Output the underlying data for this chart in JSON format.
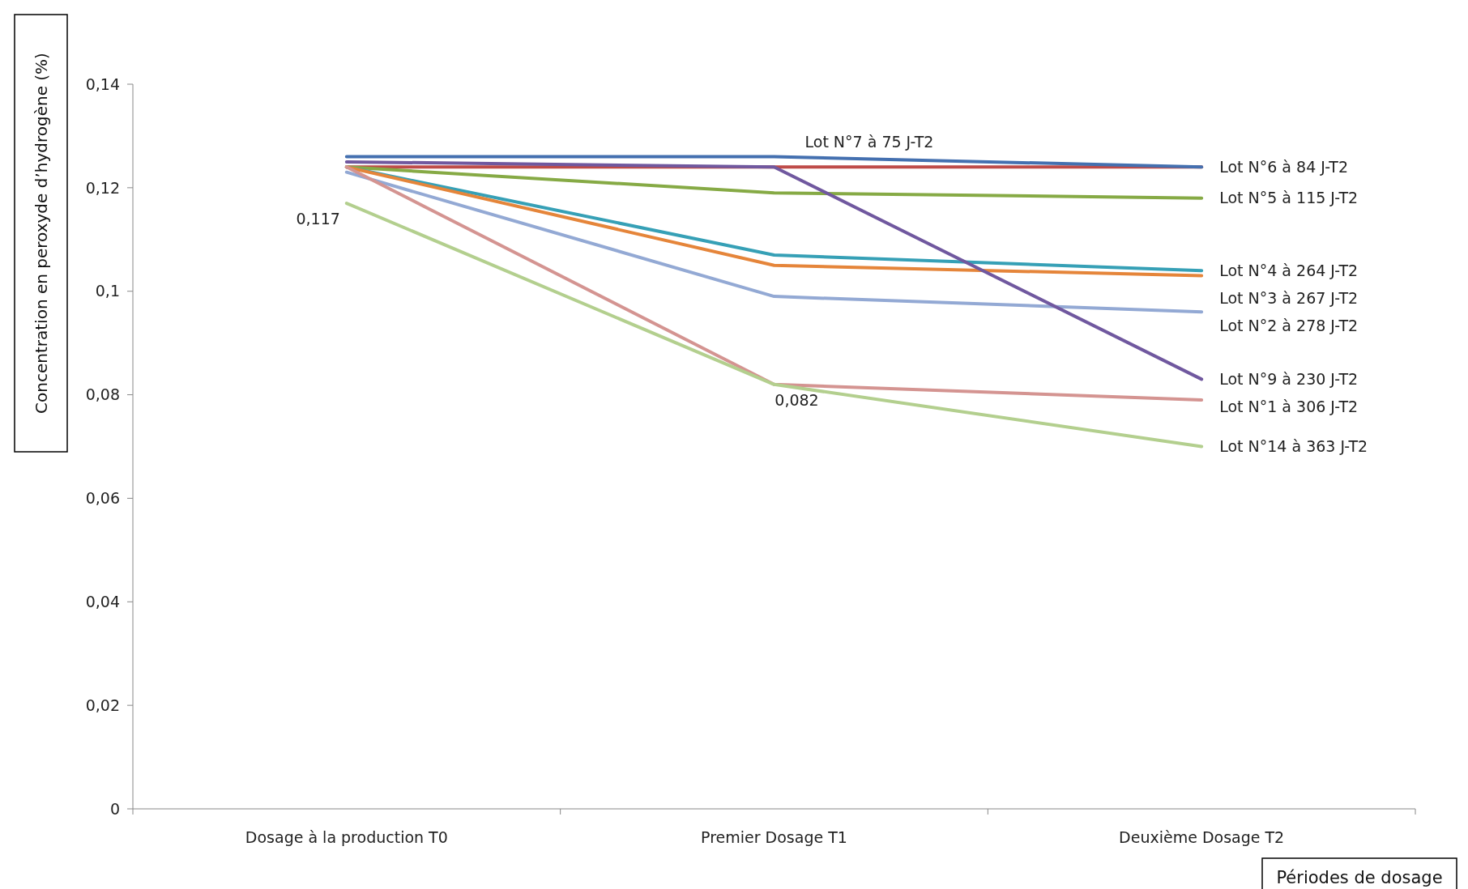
{
  "chart_data": {
    "type": "line",
    "xlabel": "Périodes de dosage",
    "ylabel": "Concentration en peroxyde d’hydrogène  (%)",
    "categories": [
      "Dosage à la production T0",
      "Premier Dosage T1",
      "Deuxième Dosage T2"
    ],
    "ylim": [
      0,
      0.14
    ],
    "yticks": [
      {
        "value": 0,
        "label": "0"
      },
      {
        "value": 0.02,
        "label": "0,02"
      },
      {
        "value": 0.04,
        "label": "0,04"
      },
      {
        "value": 0.06,
        "label": "0,06"
      },
      {
        "value": 0.08,
        "label": "0,08"
      },
      {
        "value": 0.1,
        "label": "0,1"
      },
      {
        "value": 0.12,
        "label": "0,12"
      },
      {
        "value": 0.14,
        "label": "0,14"
      }
    ],
    "grid": false,
    "marker": "none",
    "line_style": "solid",
    "series": [
      {
        "name": "Lot N°6 à 84 J-T2",
        "color": "#be4b48",
        "values": [
          0.124,
          0.124,
          0.124
        ]
      },
      {
        "name": "Lot N°7 à 75 J-T2",
        "color": "#4470b0",
        "values": [
          0.126,
          0.126,
          0.124
        ]
      },
      {
        "name": "Lot N°5 à 115 J-T2",
        "color": "#86aa45",
        "values": [
          0.124,
          0.119,
          0.118
        ]
      },
      {
        "name": "Lot N°4 à 264 J-T2",
        "color": "#36a0b6",
        "values": [
          0.124,
          0.107,
          0.104
        ]
      },
      {
        "name": "Lot N°3 à 267 J-T2",
        "color": "#e5853a",
        "values": [
          0.124,
          0.105,
          0.103
        ]
      },
      {
        "name": "Lot N°2 à 278 J-T2",
        "color": "#93a9d4",
        "values": [
          0.123,
          0.099,
          0.096
        ]
      },
      {
        "name": "Lot N°9 à 230 J-T2",
        "color": "#70589f",
        "values": [
          0.125,
          0.124,
          0.083
        ]
      },
      {
        "name": "Lot N°1 à 306 J-T2",
        "color": "#d49491",
        "values": [
          0.124,
          0.082,
          0.079
        ]
      },
      {
        "name": "Lot N°14 à 363 J-T2",
        "color": "#b3cf8e",
        "values": [
          0.117,
          0.082,
          0.07
        ]
      }
    ],
    "annotations": [
      {
        "text": "0,117",
        "x": "Dosage à la production T0",
        "y": 0.117
      },
      {
        "text": "0,082",
        "x": "Premier Dosage T1",
        "y": 0.082
      }
    ]
  }
}
